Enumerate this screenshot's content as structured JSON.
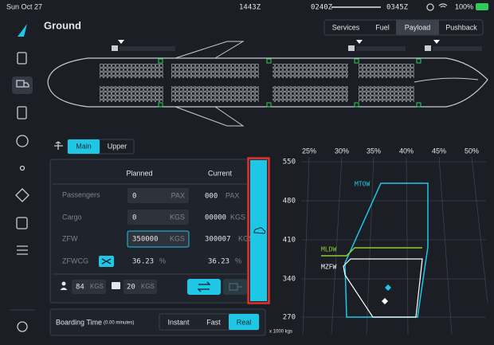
{
  "status_bar": {
    "date": "Sun Oct 27",
    "utc_time": "1443Z",
    "departure_time": "0240Z",
    "arrival_time": "0345Z",
    "battery": "100%"
  },
  "header": {
    "title": "Ground",
    "tabs": [
      "Services",
      "Fuel",
      "Payload",
      "Pushback"
    ]
  },
  "deck_tabs": [
    "Main",
    "Upper"
  ],
  "payload_table": {
    "headers": [
      "Planned",
      "Current"
    ],
    "rows": [
      {
        "label": "Passengers",
        "planned": 0,
        "planned_unit": "PAX",
        "current": "000",
        "current_unit": "PAX"
      },
      {
        "label": "Cargo",
        "planned": 0,
        "planned_unit": "KGS",
        "current": "00000",
        "current_unit": "KGS"
      },
      {
        "label": "ZFW",
        "planned": 350000,
        "planned_unit": "KGS",
        "current": 300007,
        "current_unit": "KGS"
      },
      {
        "label": "ZFWCG",
        "planned": 36.23,
        "planned_unit": "%",
        "current": 36.23,
        "current_unit": "%"
      }
    ]
  },
  "unit_weights": {
    "passenger": 84,
    "passenger_unit": "KGS",
    "bag": 20,
    "bag_unit": "KGS"
  },
  "boarding": {
    "label": "Boarding Time",
    "duration": "(0.00 minutes)",
    "options": [
      "Instant",
      "Fast",
      "Real"
    ]
  },
  "cg_chart": {
    "x_ticks": [
      "25%",
      "30%",
      "35%",
      "40%",
      "45%",
      "50%"
    ],
    "y_ticks": [
      550,
      480,
      410,
      340,
      270
    ],
    "y_unit": "x 1000 kgs",
    "limits": [
      "MTOW",
      "MLDW",
      "MZFW"
    ]
  }
}
